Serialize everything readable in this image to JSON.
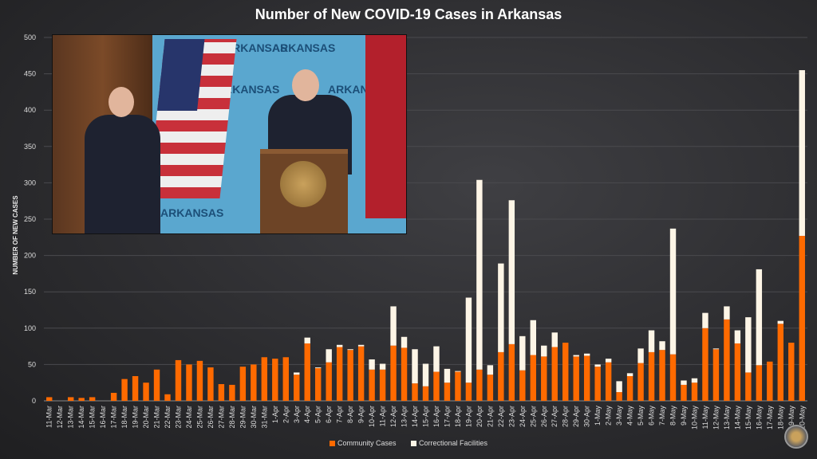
{
  "chart_data": {
    "type": "bar",
    "stacked": true,
    "title": "Number of New COVID-19 Cases in Arkansas",
    "xlabel": "",
    "ylabel": "NUMBER OF NEW CASES",
    "ylim": [
      0,
      500
    ],
    "yticks": [
      0,
      50,
      100,
      150,
      200,
      250,
      300,
      350,
      400,
      450,
      500
    ],
    "grid": true,
    "legend_position": "bottom",
    "categories": [
      "11-Mar",
      "12-Mar",
      "13-Mar",
      "14-Mar",
      "15-Mar",
      "16-Mar",
      "17-Mar",
      "18-Mar",
      "19-Mar",
      "20-Mar",
      "21-Mar",
      "22-Mar",
      "23-Mar",
      "24-Mar",
      "25-Mar",
      "26-Mar",
      "27-Mar",
      "28-Mar",
      "29-Mar",
      "30-Mar",
      "31-Mar",
      "1-Apr",
      "2-Apr",
      "3-Apr",
      "4-Apr",
      "5-Apr",
      "6-Apr",
      "7-Apr",
      "8-Apr",
      "9-Apr",
      "10-Apr",
      "11-Apr",
      "12-Apr",
      "13-Apr",
      "14-Apr",
      "15-Apr",
      "16-Apr",
      "17-Apr",
      "18-Apr",
      "19-Apr",
      "20-Apr",
      "21-Apr",
      "22-Apr",
      "23-Apr",
      "24-Apr",
      "25-Apr",
      "26-Apr",
      "27-Apr",
      "28-Apr",
      "29-Apr",
      "30-Apr",
      "1-May",
      "2-May",
      "3-May",
      "4-May",
      "5-May",
      "6-May",
      "7-May",
      "8-May",
      "9-May",
      "10-May",
      "11-May",
      "12-May",
      "13-May",
      "14-May",
      "15-May",
      "16-May",
      "17-May",
      "18-May",
      "19-May",
      "20-May"
    ],
    "series": [
      {
        "name": "Community Cases",
        "color": "#ff6a00",
        "values": [
          5,
          0,
          5,
          4,
          5,
          0,
          11,
          30,
          34,
          25,
          43,
          9,
          56,
          50,
          55,
          46,
          23,
          22,
          47,
          50,
          60,
          58,
          60,
          36,
          79,
          45,
          53,
          74,
          70,
          75,
          43,
          43,
          76,
          73,
          24,
          20,
          40,
          25,
          40,
          25,
          43,
          36,
          67,
          78,
          42,
          63,
          61,
          74,
          80,
          61,
          62,
          47,
          53,
          12,
          34,
          52,
          67,
          70,
          64,
          22,
          25,
          100,
          71,
          112,
          79,
          39,
          49,
          54,
          106,
          80,
          227
        ]
      },
      {
        "name": "Correctional Facilities",
        "color": "#fdf5e6",
        "values": [
          0,
          0,
          0,
          0,
          0,
          0,
          0,
          0,
          0,
          0,
          0,
          0,
          0,
          0,
          0,
          0,
          0,
          0,
          0,
          0,
          0,
          0,
          0,
          3,
          8,
          1,
          18,
          3,
          1,
          2,
          14,
          8,
          54,
          15,
          47,
          31,
          35,
          19,
          1,
          117,
          261,
          13,
          122,
          198,
          47,
          48,
          15,
          20,
          0,
          2,
          3,
          3,
          5,
          15,
          4,
          20,
          30,
          12,
          173,
          6,
          6,
          21,
          1,
          18,
          18,
          76,
          132,
          0,
          4,
          0,
          228
        ]
      }
    ]
  }
}
